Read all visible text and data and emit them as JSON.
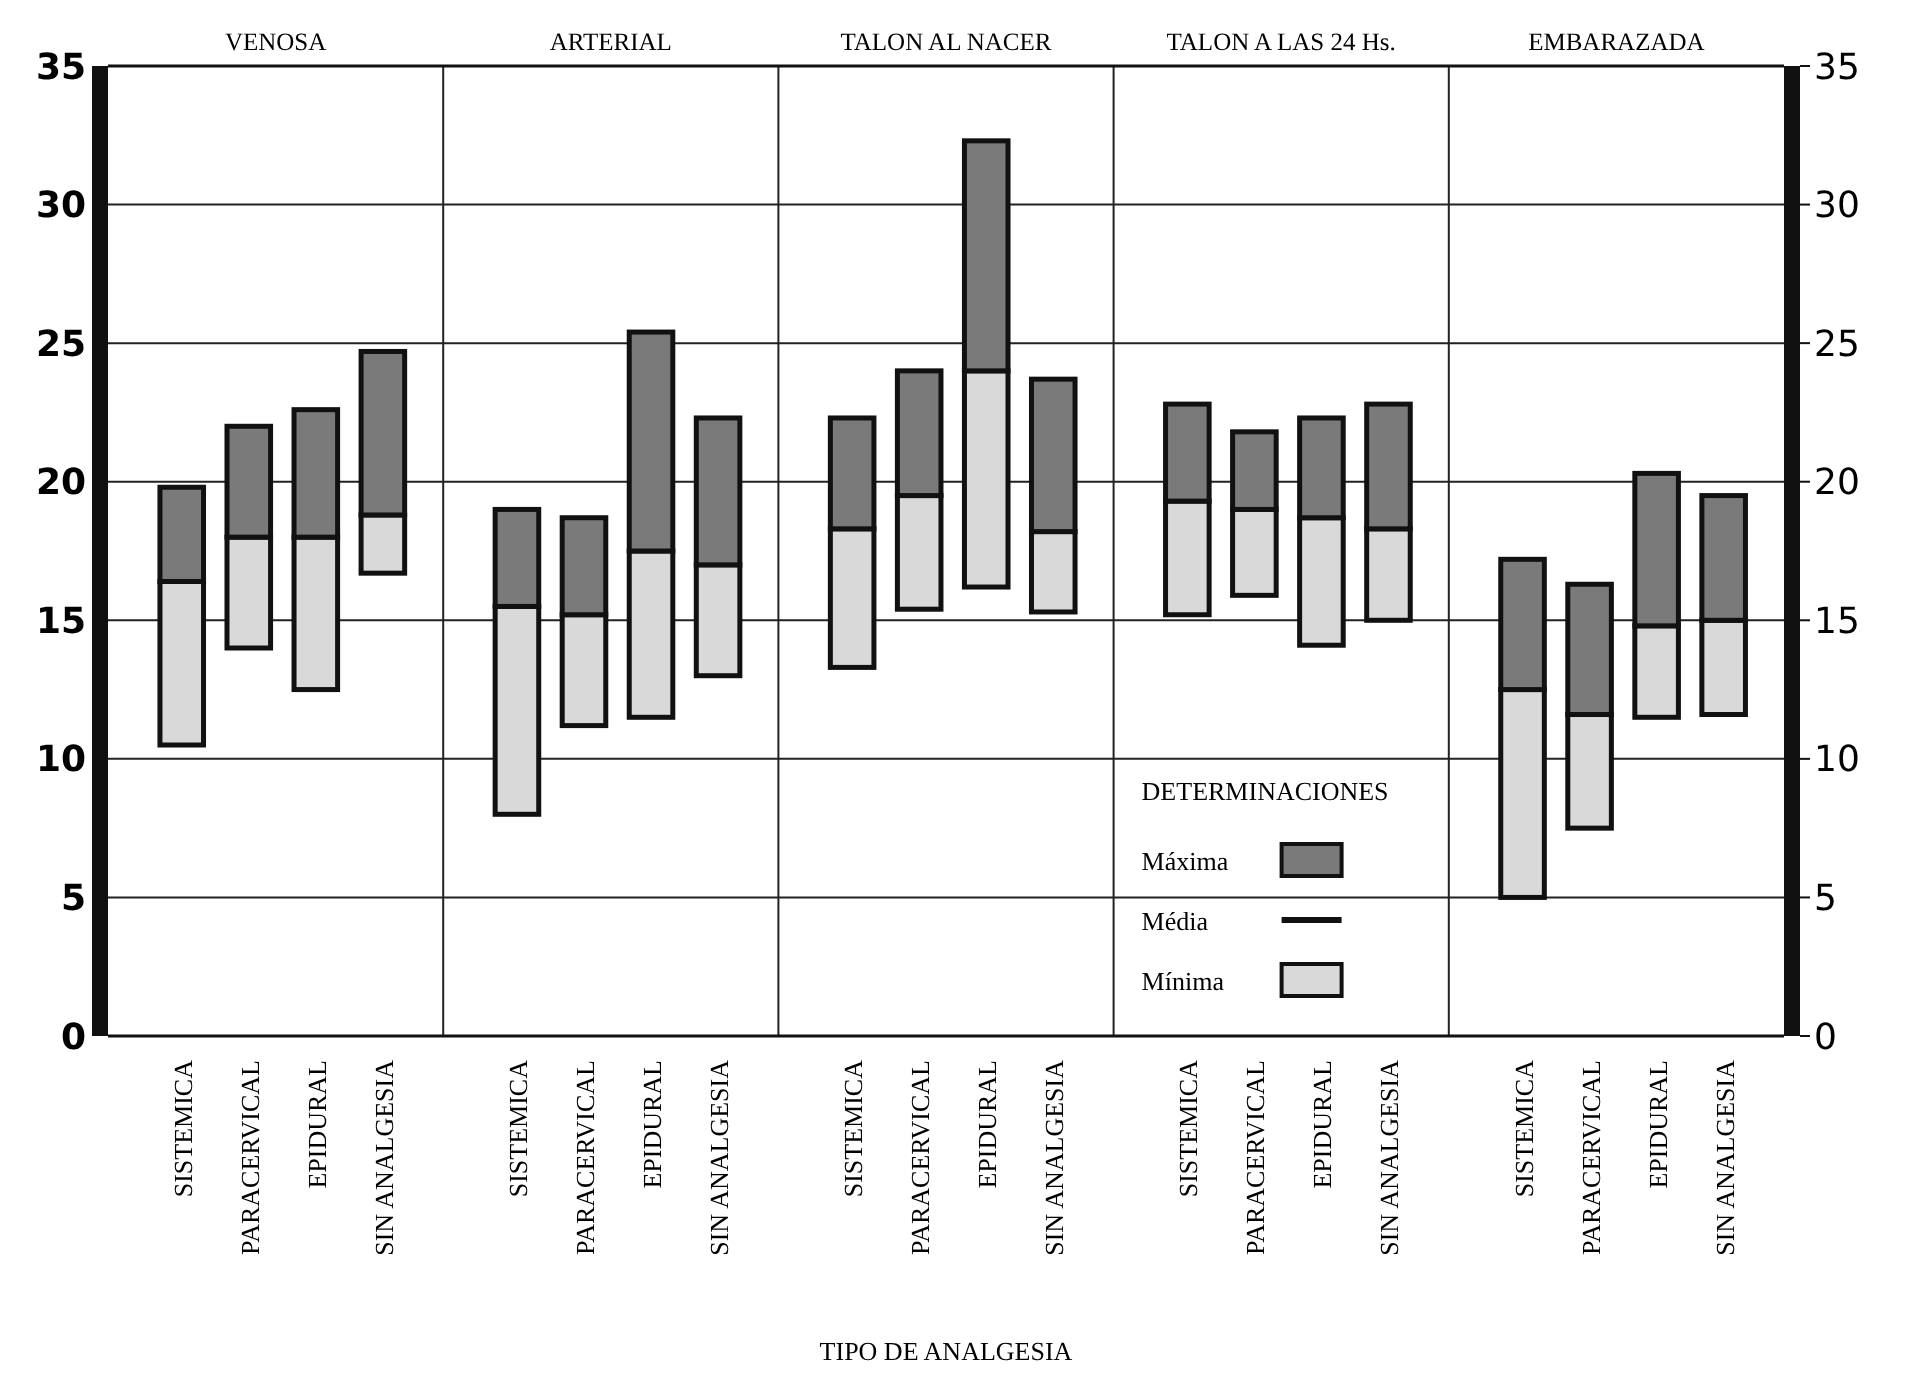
{
  "chart_data": {
    "type": "bar",
    "xlabel": "TIPO DE ANALGESIA",
    "legend_title": "DETERMINACIONES",
    "categories": [
      "SISTEMICA",
      "PARACERVICAL",
      "EPIDURAL",
      "SIN ANALGESIA",
      "SISTEMICA",
      "PARACERVICAL",
      "EPIDURAL",
      "SIN ANALGESIA",
      "SISTEMICA",
      "PARACERVICAL",
      "EPIDURAL",
      "SIN ANALGESIA",
      "SISTEMICA",
      "PARACERVICAL",
      "EPIDURAL",
      "SIN ANALGESIA",
      "SISTEMICA",
      "PARACERVICAL",
      "EPIDURAL",
      "SIN ANALGESIA"
    ],
    "series": [
      {
        "name": "Mínima",
        "color": "#d9d9d9",
        "base": [
          10.5,
          14,
          12.5,
          16.7,
          8,
          11.2,
          11.5,
          13,
          13.3,
          15.4,
          16.2,
          15.3,
          15.2,
          15.9,
          14.1,
          15,
          5,
          7.5,
          11.5,
          11.6
        ],
        "values": [
          5.9,
          4,
          5.5,
          2.1,
          7.5,
          4,
          6,
          4,
          5,
          4.1,
          7.8,
          2.9,
          4.1,
          3.1,
          4.6,
          3.3,
          7.5,
          4.1,
          3.3,
          3.4
        ]
      },
      {
        "name": "Máxima",
        "color": "#7a7a7a",
        "base": [
          16.4,
          18,
          18,
          18.8,
          15.5,
          15.2,
          17.5,
          17,
          18.3,
          19.5,
          24,
          18.2,
          19.3,
          19,
          18.7,
          18.3,
          12.5,
          11.6,
          14.8,
          15
        ],
        "values": [
          3.4,
          4,
          4.6,
          5.9,
          3.5,
          3.5,
          7.9,
          5.3,
          4,
          4.5,
          8.3,
          5.5,
          3.5,
          2.8,
          3.6,
          4.5,
          4.7,
          4.7,
          5.5,
          4.5
        ]
      }
    ],
    "annotations": [
      "VENOSA",
      "ARTERIAL",
      "TALON AL NACER",
      "TALON A LAS 24 Hs.",
      "EMBARAZADA",
      "Média"
    ],
    "ylim": [
      0,
      35
    ],
    "yticks": [
      0,
      5,
      10,
      15,
      20,
      25,
      30,
      35
    ],
    "y2lim": [
      0,
      35
    ],
    "y2ticks": [
      0,
      5,
      10,
      15,
      20,
      25,
      30,
      35
    ],
    "grid": "y",
    "legend": "bottom right"
  }
}
